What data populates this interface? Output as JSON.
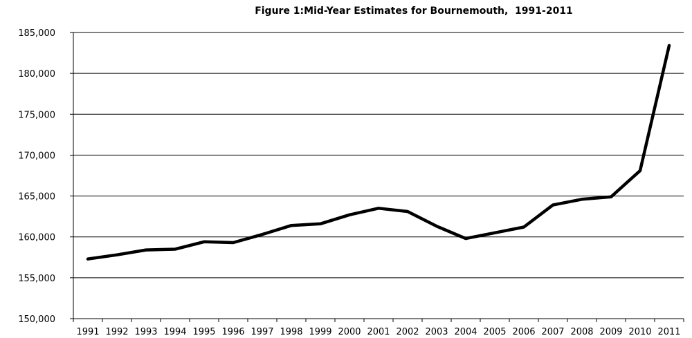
{
  "chart_data": {
    "type": "line",
    "title": "Figure 1:Mid-Year Estimates for Bournemouth,  1991-2011",
    "xlabel": "",
    "ylabel": "",
    "categories": [
      "1991",
      "1992",
      "1993",
      "1994",
      "1995",
      "1996",
      "1997",
      "1998",
      "1999",
      "2000",
      "2001",
      "2002",
      "2003",
      "2004",
      "2005",
      "2006",
      "2007",
      "2008",
      "2009",
      "2010",
      "2011"
    ],
    "series": [
      {
        "values": [
          157300,
          157800,
          158400,
          158500,
          159400,
          159300,
          160300,
          161400,
          161600,
          162700,
          163500,
          163100,
          161300,
          159800,
          160500,
          161200,
          163900,
          164600,
          164900,
          168100,
          183400
        ]
      }
    ],
    "ylim": [
      150000,
      185000
    ],
    "y_ticks": [
      "150,000",
      "155,000",
      "160,000",
      "165,000",
      "170,000",
      "175,000",
      "180,000",
      "185,000"
    ],
    "grid": "horizontal",
    "line_color": "#000000"
  }
}
